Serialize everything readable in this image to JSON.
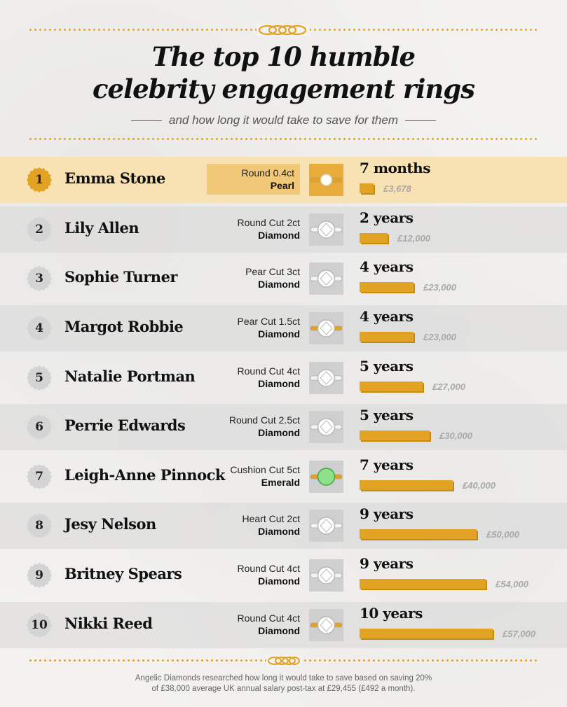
{
  "header": {
    "title_line1": "The top 10 humble",
    "title_line2": "celebrity engagement rings",
    "subtitle": "and how long it would take to save for them"
  },
  "colors": {
    "accent": "#e2a224",
    "highlight": "#f8e2b3",
    "shade": "#d8d8d8"
  },
  "chart_data": {
    "type": "bar",
    "title": "The top 10 humble celebrity engagement rings",
    "subtitle": "and how long it would take to save for them",
    "categories": [
      "Emma Stone",
      "Lily Allen",
      "Sophie Turner",
      "Margot Robbie",
      "Natalie Portman",
      "Perrie Edwards",
      "Leigh-Anne Pinnock",
      "Jesy Nelson",
      "Britney Spears",
      "Nikki Reed"
    ],
    "values": [
      3678,
      12000,
      23000,
      23000,
      27000,
      30000,
      40000,
      50000,
      54000,
      57000
    ],
    "rows": [
      {
        "rank": "1",
        "name": "Emma Stone",
        "cut": "Round 0.4ct",
        "stone": "Pearl",
        "duration": "7 months",
        "amount": "£3,678",
        "value": 3678,
        "gem": "pearl",
        "band": "gold",
        "highlight": true
      },
      {
        "rank": "2",
        "name": "Lily Allen",
        "cut": "Round Cut 2ct",
        "stone": "Diamond",
        "duration": "2 years",
        "amount": "£12,000",
        "value": 12000,
        "gem": "diamond",
        "band": "silver",
        "highlight": false
      },
      {
        "rank": "3",
        "name": "Sophie Turner",
        "cut": "Pear Cut 3ct",
        "stone": "Diamond",
        "duration": "4 years",
        "amount": "£23,000",
        "value": 23000,
        "gem": "diamond",
        "band": "silver",
        "highlight": false
      },
      {
        "rank": "4",
        "name": "Margot Robbie",
        "cut": "Pear Cut 1.5ct",
        "stone": "Diamond",
        "duration": "4 years",
        "amount": "£23,000",
        "value": 23000,
        "gem": "diamond",
        "band": "gold",
        "highlight": false
      },
      {
        "rank": "5",
        "name": "Natalie Portman",
        "cut": "Round Cut 4ct",
        "stone": "Diamond",
        "duration": "5 years",
        "amount": "£27,000",
        "value": 27000,
        "gem": "diamond",
        "band": "silver",
        "highlight": false
      },
      {
        "rank": "6",
        "name": "Perrie Edwards",
        "cut": "Round Cut 2.5ct",
        "stone": "Diamond",
        "duration": "5 years",
        "amount": "£30,000",
        "value": 30000,
        "gem": "diamond",
        "band": "silver",
        "highlight": false
      },
      {
        "rank": "7",
        "name": "Leigh-Anne Pinnock",
        "cut": "Cushion Cut 5ct",
        "stone": "Emerald",
        "duration": "7 years",
        "amount": "£40,000",
        "value": 40000,
        "gem": "emerald",
        "band": "gold",
        "highlight": false
      },
      {
        "rank": "8",
        "name": "Jesy Nelson",
        "cut": "Heart Cut 2ct",
        "stone": "Diamond",
        "duration": "9 years",
        "amount": "£50,000",
        "value": 50000,
        "gem": "diamond",
        "band": "silver",
        "highlight": false
      },
      {
        "rank": "9",
        "name": "Britney Spears",
        "cut": "Round Cut 4ct",
        "stone": "Diamond",
        "duration": "9 years",
        "amount": "£54,000",
        "value": 54000,
        "gem": "diamond",
        "band": "silver",
        "highlight": false
      },
      {
        "rank": "10",
        "name": "Nikki Reed",
        "cut": "Round Cut 4ct",
        "stone": "Diamond",
        "duration": "10 years",
        "amount": "£57,000",
        "value": 57000,
        "gem": "diamond",
        "band": "gold",
        "highlight": false
      }
    ]
  },
  "footer": {
    "line1": "Angelic Diamonds researched how long it would take to save based on saving 20%",
    "line2": "of £38,000 average UK annual salary post-tax at £29,455 (£492 a month)."
  }
}
